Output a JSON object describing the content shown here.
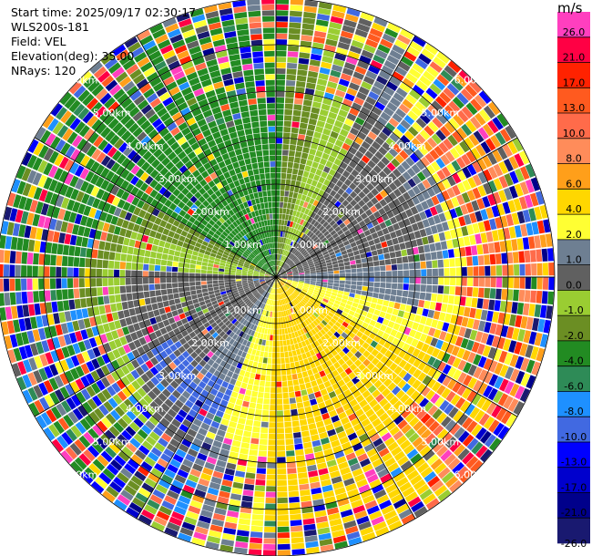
{
  "header": {
    "start_time": "Start time: 2025/09/17 02:30:17",
    "instrument": "WLS200s-181",
    "field": "Field: VEL",
    "elevation": "Elevation(deg): 35.00",
    "nrays": "NRays: 120"
  },
  "chart_data": {
    "type": "heatmap",
    "projection": "polar-ppi",
    "n_rays": 120,
    "range_unit": "km",
    "max_range_km": 6.0,
    "range_rings_km": [
      1.0,
      2.0,
      3.0,
      4.0,
      5.0,
      6.0
    ],
    "range_ring_labels": [
      "1.00km",
      "2.00km",
      "3.00km",
      "4.00km",
      "5.00km",
      "6.00km"
    ],
    "colorbar": {
      "unit": "m/s",
      "tick_labels": [
        "26.0",
        "21.0",
        "17.0",
        "13.0",
        "10.0",
        "8.0",
        "6.0",
        "4.0",
        "2.0",
        "1.0",
        "0.0",
        "-1.0",
        "-2.0",
        "-4.0",
        "-6.0",
        "-8.0",
        "-10.0",
        "-13.0",
        "-17.0",
        "-21.0",
        "-26.0",
        "-30.0"
      ],
      "colors": [
        "#ff3fbf",
        "#ff0044",
        "#ff2200",
        "#ff5a1f",
        "#ff6b4a",
        "#ff8c5a",
        "#ff9f1a",
        "#ffd700",
        "#ffff33",
        "#6e7f92",
        "#606060",
        "#9acd32",
        "#6b8e23",
        "#228b22",
        "#2e8b57",
        "#1e90ff",
        "#4169e1",
        "#0000ff",
        "#0000cd",
        "#00008b",
        "#191970"
      ]
    }
  }
}
